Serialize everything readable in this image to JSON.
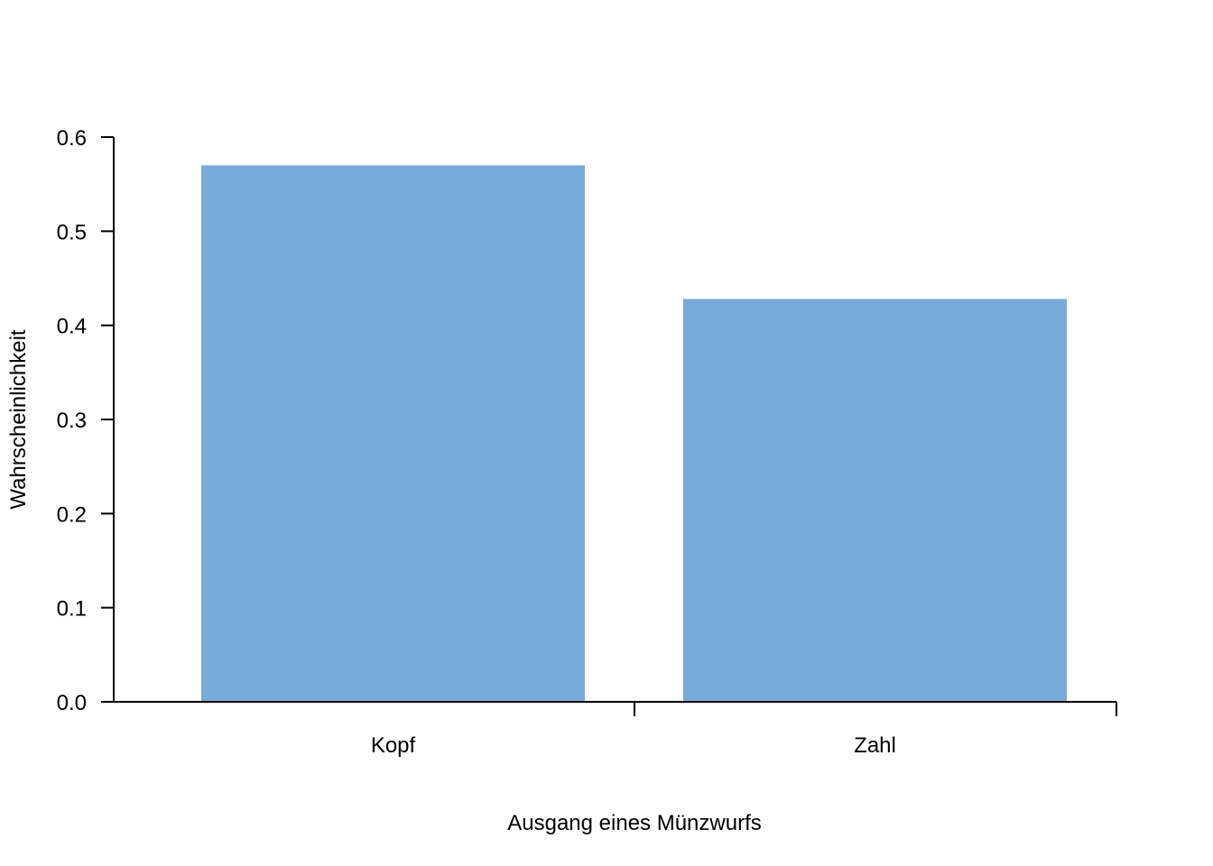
{
  "chart_data": {
    "type": "bar",
    "title": "",
    "xlabel": "Ausgang eines Münzwurfs",
    "ylabel": "Wahrscheinlichkeit",
    "categories": [
      "Kopf",
      "Zahl"
    ],
    "values": [
      0.57,
      0.428
    ],
    "ylim": [
      0,
      0.6
    ],
    "yticks": [
      "0.0",
      "0.1",
      "0.2",
      "0.3",
      "0.4",
      "0.5",
      "0.6"
    ],
    "grid": false,
    "legend": "none",
    "bar_color": "#78aad9"
  }
}
